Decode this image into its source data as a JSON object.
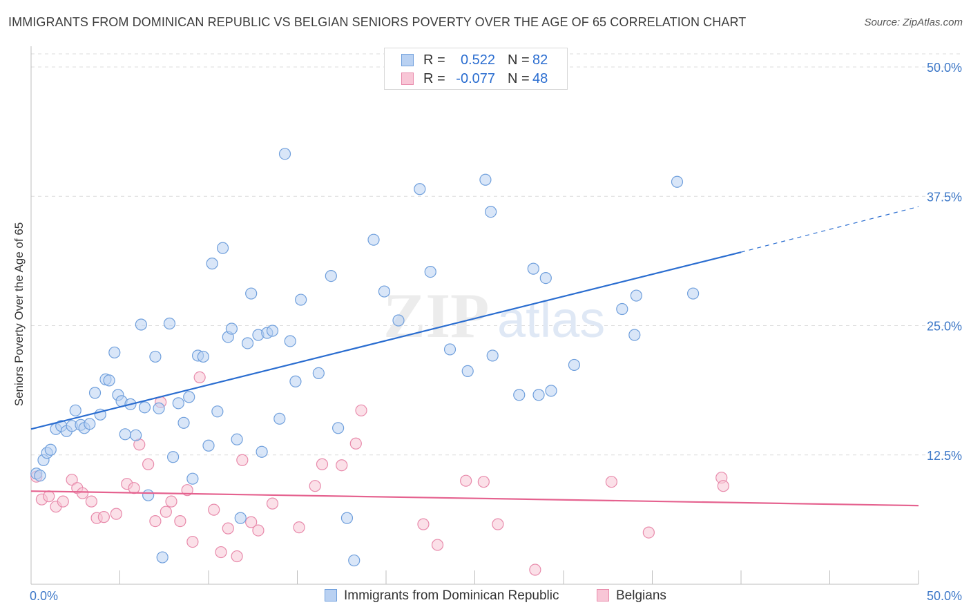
{
  "title": "IMMIGRANTS FROM DOMINICAN REPUBLIC VS BELGIAN SENIORS POVERTY OVER THE AGE OF 65 CORRELATION CHART",
  "source": "Source: ZipAtlas.com",
  "watermark": "ZIPatlas",
  "legend": {
    "rows": [
      {
        "r_label": "R =",
        "r_value": "0.522",
        "n_label": "N =",
        "n_value": "82"
      },
      {
        "r_label": "R =",
        "r_value": "-0.077",
        "n_label": "N =",
        "n_value": "48"
      }
    ]
  },
  "bottom_legend": {
    "series1": "Immigrants from Dominican Republic",
    "series2": "Belgians"
  },
  "colors": {
    "blue_fill": "#b9d1f2",
    "blue_stroke": "#6f9fdc",
    "blue_line": "#2a6dd0",
    "pink_fill": "#f8c6d6",
    "pink_stroke": "#e88aab",
    "pink_line": "#e5628f",
    "grid": "#dcdcdc",
    "tick_label": "#3d78c8"
  },
  "chart_data": {
    "type": "scatter",
    "title": "IMMIGRANTS FROM DOMINICAN REPUBLIC VS BELGIAN SENIORS POVERTY OVER THE AGE OF 65 CORRELATION CHART",
    "xlabel": "",
    "ylabel": "Seniors Poverty Over the Age of 65",
    "xlim": [
      0,
      50
    ],
    "ylim": [
      0,
      50
    ],
    "x_tick_labels": [
      "0.0%",
      "50.0%"
    ],
    "y_tick_labels": [
      "12.5%",
      "25.0%",
      "37.5%",
      "50.0%"
    ],
    "y_ticks": [
      12.5,
      25.0,
      37.5,
      50.0
    ],
    "grid": true,
    "legend_position": "top-center",
    "series": [
      {
        "name": "Immigrants from Dominican Republic",
        "color": "#6f9fdc",
        "trend": {
          "x0": 0,
          "y0": 15.0,
          "x1": 40,
          "y1": 32.1,
          "dashed_to_x": 50,
          "dashed_to_y": 36.5
        },
        "points": [
          [
            0.3,
            10.7
          ],
          [
            0.5,
            10.5
          ],
          [
            0.7,
            12.0
          ],
          [
            0.9,
            12.7
          ],
          [
            1.1,
            13.0
          ],
          [
            1.4,
            15.0
          ],
          [
            1.7,
            15.3
          ],
          [
            2.0,
            14.8
          ],
          [
            2.3,
            15.3
          ],
          [
            2.5,
            16.8
          ],
          [
            2.8,
            15.4
          ],
          [
            3.0,
            15.1
          ],
          [
            3.3,
            15.5
          ],
          [
            3.6,
            18.5
          ],
          [
            3.9,
            16.4
          ],
          [
            4.2,
            19.8
          ],
          [
            4.4,
            19.7
          ],
          [
            4.7,
            22.4
          ],
          [
            4.9,
            18.3
          ],
          [
            5.1,
            17.7
          ],
          [
            5.3,
            14.5
          ],
          [
            5.6,
            17.4
          ],
          [
            5.9,
            14.4
          ],
          [
            6.2,
            25.1
          ],
          [
            6.4,
            17.1
          ],
          [
            6.6,
            8.6
          ],
          [
            7.0,
            22.0
          ],
          [
            7.2,
            17.0
          ],
          [
            7.4,
            2.6
          ],
          [
            7.8,
            25.2
          ],
          [
            8.0,
            12.3
          ],
          [
            8.3,
            17.5
          ],
          [
            8.6,
            15.6
          ],
          [
            8.9,
            18.1
          ],
          [
            9.1,
            10.2
          ],
          [
            9.4,
            22.1
          ],
          [
            9.7,
            22.0
          ],
          [
            10.0,
            13.4
          ],
          [
            10.2,
            31.0
          ],
          [
            10.5,
            16.7
          ],
          [
            10.8,
            32.5
          ],
          [
            11.1,
            23.9
          ],
          [
            11.3,
            24.7
          ],
          [
            11.6,
            14.0
          ],
          [
            11.8,
            6.4
          ],
          [
            12.2,
            23.3
          ],
          [
            12.4,
            28.1
          ],
          [
            12.8,
            24.1
          ],
          [
            13.0,
            12.8
          ],
          [
            13.3,
            24.3
          ],
          [
            13.6,
            24.5
          ],
          [
            14.0,
            16.0
          ],
          [
            14.3,
            41.6
          ],
          [
            14.6,
            23.5
          ],
          [
            14.9,
            19.6
          ],
          [
            15.2,
            27.5
          ],
          [
            16.2,
            20.4
          ],
          [
            16.9,
            29.8
          ],
          [
            17.3,
            15.1
          ],
          [
            17.8,
            6.4
          ],
          [
            18.2,
            2.3
          ],
          [
            19.3,
            33.3
          ],
          [
            19.9,
            28.3
          ],
          [
            20.7,
            25.5
          ],
          [
            21.9,
            38.2
          ],
          [
            22.5,
            30.2
          ],
          [
            23.6,
            22.7
          ],
          [
            24.6,
            20.6
          ],
          [
            25.6,
            39.1
          ],
          [
            25.9,
            36.0
          ],
          [
            26.0,
            22.1
          ],
          [
            27.5,
            18.3
          ],
          [
            28.3,
            30.5
          ],
          [
            28.6,
            18.3
          ],
          [
            29.0,
            29.6
          ],
          [
            29.3,
            18.7
          ],
          [
            30.6,
            21.2
          ],
          [
            33.3,
            26.6
          ],
          [
            34.0,
            24.1
          ],
          [
            34.1,
            27.9
          ],
          [
            36.4,
            38.9
          ],
          [
            37.3,
            28.1
          ]
        ]
      },
      {
        "name": "Belgians",
        "color": "#e88aab",
        "trend": {
          "x0": 0,
          "y0": 9.0,
          "x1": 50,
          "y1": 7.6
        },
        "points": [
          [
            0.3,
            10.4
          ],
          [
            0.6,
            8.2
          ],
          [
            1.0,
            8.5
          ],
          [
            1.4,
            7.5
          ],
          [
            1.8,
            8.0
          ],
          [
            2.3,
            10.1
          ],
          [
            2.6,
            9.3
          ],
          [
            2.9,
            8.8
          ],
          [
            3.4,
            8.0
          ],
          [
            3.7,
            6.4
          ],
          [
            4.1,
            6.5
          ],
          [
            4.8,
            6.8
          ],
          [
            5.4,
            9.7
          ],
          [
            5.8,
            9.3
          ],
          [
            6.1,
            13.5
          ],
          [
            6.6,
            11.6
          ],
          [
            7.0,
            6.1
          ],
          [
            7.3,
            17.6
          ],
          [
            7.6,
            7.0
          ],
          [
            7.9,
            8.0
          ],
          [
            8.4,
            6.1
          ],
          [
            8.8,
            9.1
          ],
          [
            9.1,
            4.1
          ],
          [
            9.5,
            20.0
          ],
          [
            10.3,
            7.2
          ],
          [
            10.7,
            3.1
          ],
          [
            11.1,
            5.4
          ],
          [
            11.6,
            2.7
          ],
          [
            11.9,
            12.0
          ],
          [
            12.4,
            6.0
          ],
          [
            12.8,
            5.2
          ],
          [
            13.6,
            7.8
          ],
          [
            15.1,
            5.5
          ],
          [
            16.0,
            9.5
          ],
          [
            16.4,
            11.6
          ],
          [
            17.5,
            11.5
          ],
          [
            18.3,
            13.6
          ],
          [
            18.6,
            16.8
          ],
          [
            22.1,
            5.8
          ],
          [
            22.9,
            3.8
          ],
          [
            24.5,
            10.0
          ],
          [
            25.5,
            9.9
          ],
          [
            26.3,
            5.8
          ],
          [
            28.4,
            1.4
          ],
          [
            32.7,
            9.9
          ],
          [
            34.8,
            5.0
          ],
          [
            38.9,
            10.3
          ],
          [
            39.0,
            9.5
          ]
        ]
      }
    ]
  }
}
